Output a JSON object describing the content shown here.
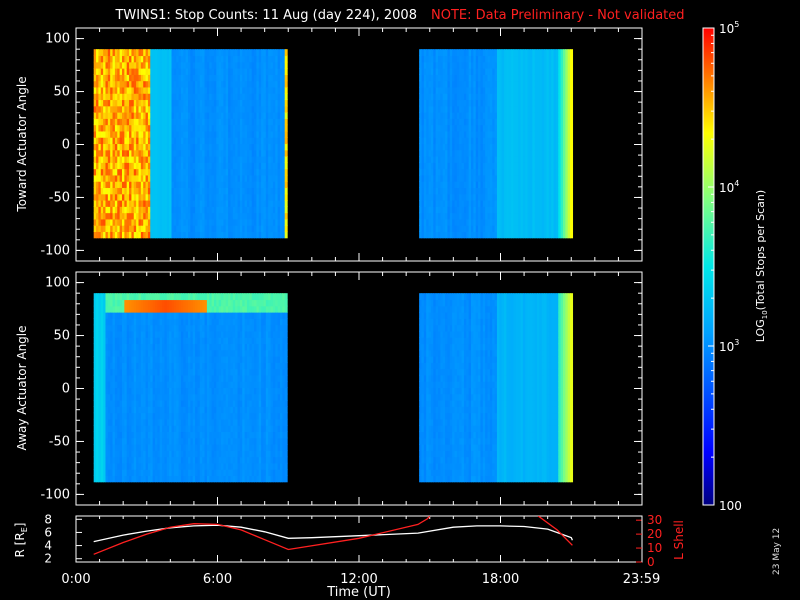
{
  "title": "TWINS1: Stop Counts: 11 Aug (day 224), 2008",
  "note": "NOTE: Data Preliminary - Not validated",
  "datestamp": "23 May 12",
  "colors": {
    "note": "#ff2020",
    "bg": "#000000",
    "axis": "#ffffff",
    "lshell": "#ff2020",
    "r": "#ffffff"
  },
  "chart_data": [
    {
      "type": "heatmap",
      "ylabel": "Toward Actuator Angle",
      "ylim": [
        -110,
        110
      ],
      "yticks": [
        100,
        50,
        0,
        -50,
        -100
      ],
      "xlim": [
        0,
        24
      ],
      "x_data_ranges_hours": [
        [
          0.75,
          8.95
        ],
        [
          14.55,
          21.05
        ]
      ],
      "y_data_range_deg": [
        -88,
        90
      ],
      "description_levels": {
        "early_high_band_hours": [
          0.75,
          3.1
        ],
        "early_band_log_counts": 4.8,
        "background_log_counts": 3.0,
        "late_edge_hours": [
          20.4,
          21.05
        ],
        "late_edge_log_counts": 4.5
      }
    },
    {
      "type": "heatmap",
      "ylabel": "Away Actuator Angle",
      "ylim": [
        -110,
        110
      ],
      "yticks": [
        100,
        50,
        0,
        -50,
        -100
      ],
      "xlim": [
        0,
        24
      ],
      "x_data_ranges_hours": [
        [
          0.75,
          8.95
        ],
        [
          14.55,
          21.05
        ]
      ],
      "y_data_range_deg": [
        -88,
        90
      ],
      "description_levels": {
        "top_band_angle_deg": [
          68,
          88
        ],
        "hot_spot_hours": [
          2.0,
          5.5
        ],
        "hot_spot_angle_deg": 75,
        "hot_spot_log_counts": 4.8,
        "background_log_counts": 3.0
      }
    },
    {
      "type": "line",
      "xlabel": "Time (UT)",
      "xticks": [
        "0:00",
        "6:00",
        "12:00",
        "18:00",
        "23:59"
      ],
      "xtick_hours": [
        0,
        6,
        12,
        18,
        23.98
      ],
      "xlim": [
        0,
        24
      ],
      "left_axis": {
        "label_main": "R [R",
        "label_sub": "E",
        "label_end": "]",
        "ticks": [
          2,
          4,
          6,
          8
        ],
        "ylim": [
          1.5,
          8.5
        ]
      },
      "right_axis": {
        "label": "L Shell",
        "ticks": [
          0,
          10,
          20,
          30
        ],
        "ylim": [
          0,
          33
        ]
      },
      "series": [
        {
          "name": "R",
          "axis": "left",
          "x": [
            0.75,
            2,
            3,
            4,
            5,
            6,
            7,
            8,
            9,
            10,
            12,
            14.5,
            16,
            17,
            18,
            19,
            20,
            21,
            21.05
          ],
          "y": [
            4.6,
            5.6,
            6.2,
            6.7,
            7.0,
            7.1,
            6.8,
            6.1,
            5.1,
            5.2,
            5.5,
            5.9,
            6.8,
            7.0,
            7.0,
            6.9,
            6.5,
            5.2,
            4.8
          ]
        },
        {
          "name": "L Shell",
          "axis": "right",
          "x": [
            0.75,
            2,
            3,
            4,
            5,
            6,
            7,
            8,
            9,
            12,
            14.5,
            14.9,
            15.0,
            null,
            19.6,
            20.4,
            21.05
          ],
          "y": [
            5.5,
            14,
            20,
            25,
            27.5,
            27,
            23,
            16,
            9,
            17,
            27,
            31,
            33,
            null,
            33,
            23,
            12
          ]
        }
      ]
    }
  ],
  "colorbar": {
    "label_main": "LOG",
    "label_sub": "10",
    "label_rest": "(Total Stops per Scan)",
    "ticks": [
      {
        "value": 100,
        "text": "100"
      },
      {
        "base": "10",
        "exp": "3"
      },
      {
        "base": "10",
        "exp": "4"
      },
      {
        "base": "10",
        "exp": "5"
      }
    ],
    "range": [
      2,
      5
    ]
  }
}
